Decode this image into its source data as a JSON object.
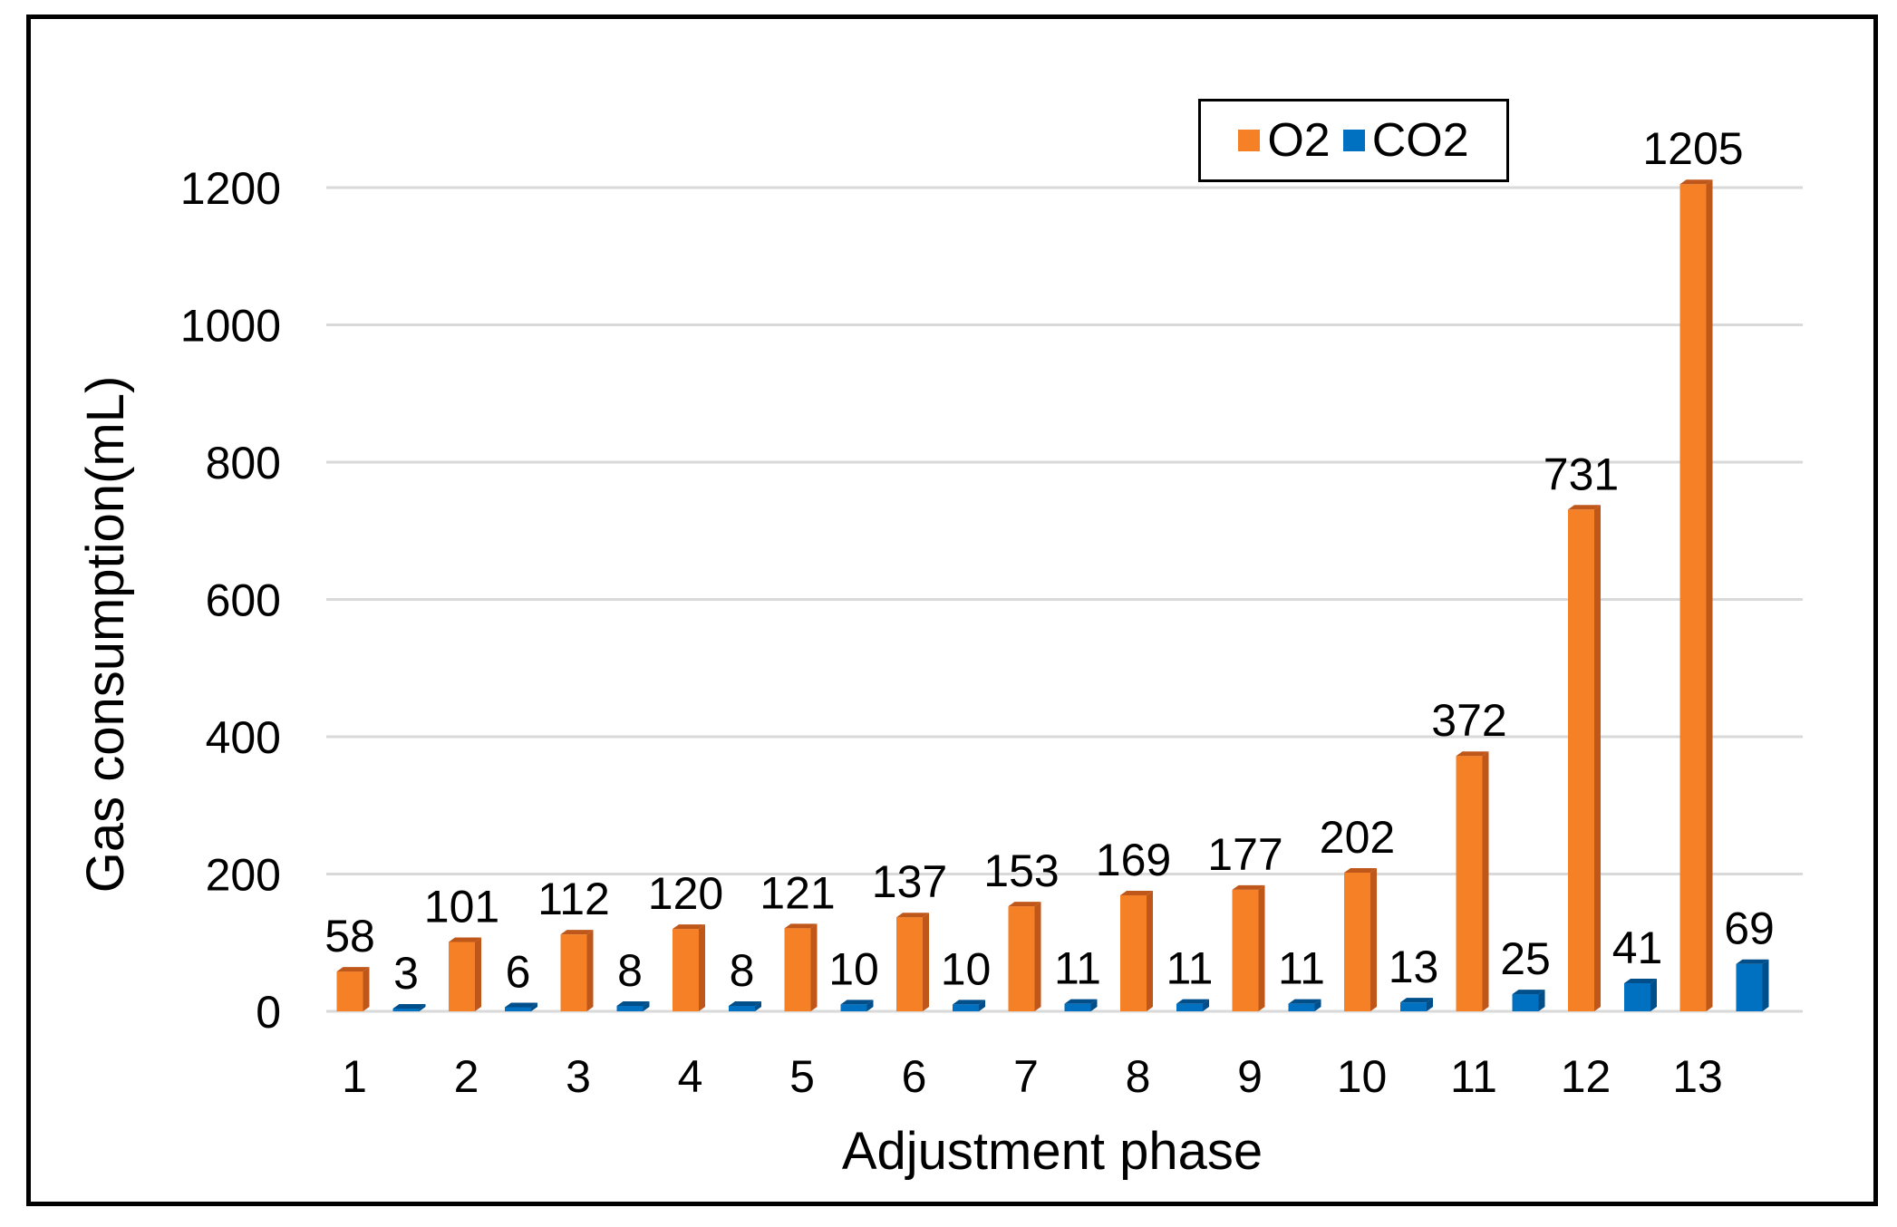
{
  "chart_data": {
    "type": "bar",
    "title": "",
    "xlabel": "Adjustment phase",
    "ylabel": "Gas consumption(mL)",
    "categories": [
      "1",
      "2",
      "3",
      "4",
      "5",
      "6",
      "7",
      "8",
      "9",
      "10",
      "11",
      "12",
      "13"
    ],
    "series": [
      {
        "name": "O2",
        "color": "#F58025",
        "values": [
          58,
          101,
          112,
          120,
          121,
          137,
          153,
          169,
          177,
          202,
          372,
          731,
          1205
        ]
      },
      {
        "name": "CO2",
        "color": "#0070C0",
        "values": [
          3,
          6,
          8,
          8,
          10,
          10,
          11,
          11,
          11,
          13,
          25,
          41,
          69
        ]
      }
    ],
    "ylim": [
      0,
      1200
    ],
    "yticks": [
      0,
      200,
      400,
      600,
      800,
      1000,
      1200
    ],
    "grid": true,
    "legend": "top-right",
    "data_labels": true
  }
}
